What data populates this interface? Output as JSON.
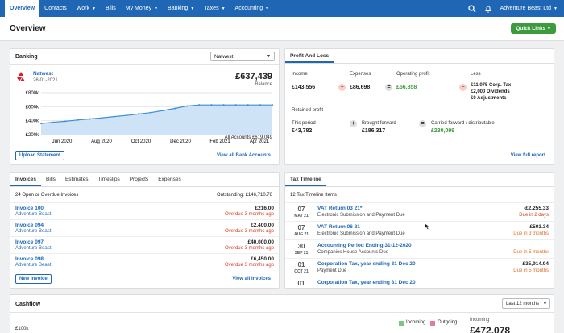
{
  "nav": {
    "items": [
      {
        "label": "Overview",
        "dropdown": false,
        "active": true
      },
      {
        "label": "Contacts",
        "dropdown": false
      },
      {
        "label": "Work",
        "dropdown": true
      },
      {
        "label": "Bills",
        "dropdown": false
      },
      {
        "label": "My Money",
        "dropdown": true
      },
      {
        "label": "Banking",
        "dropdown": true
      },
      {
        "label": "Taxes",
        "dropdown": true
      },
      {
        "label": "Accounting",
        "dropdown": true
      }
    ],
    "company": "Adventure Beast Ltd"
  },
  "page": {
    "title": "Overview",
    "quick_links": "Quick Links"
  },
  "banking": {
    "title": "Banking",
    "select": "Natwest",
    "bank_name": "Natwest",
    "date": "26-01-2021",
    "balance": "£637,439",
    "balance_label": "Balance",
    "all_accounts": "All Accounts £619,049",
    "upload": "Upload Statement",
    "view_all": "View all Bank Accounts"
  },
  "chart_data": {
    "type": "area",
    "y_ticks": [
      "£800k",
      "£600k",
      "£400k",
      "£200k"
    ],
    "x_ticks": [
      "Jun 2020",
      "Aug 2020",
      "Oct 2020",
      "Dec 2020",
      "Feb 2021",
      "Apr 2021"
    ],
    "ylim": [
      200,
      800
    ],
    "values": [
      360,
      378,
      392,
      410,
      425,
      440,
      458,
      475,
      495,
      515,
      545,
      575,
      610,
      625,
      625,
      625,
      625,
      625,
      625,
      625
    ]
  },
  "pnl": {
    "tab": "Profit And Loss",
    "income_label": "Income",
    "income": "£143,556",
    "expenses_label": "Expenses",
    "expenses": "£86,698",
    "op_label": "Operating profit",
    "op": "£56,858",
    "less_label": "Less",
    "less_lines": [
      "£11,075 Corp. Tax",
      "£2,000 Dividends",
      "£0 Adjustments"
    ],
    "retained": "Retained profit",
    "this_period_label": "This period",
    "this_period": "£43,782",
    "bf_label": "Brought forward",
    "bf": "£186,317",
    "cf_label": "Carried forward / distributable",
    "cf": "£230,099",
    "view_full": "View full report"
  },
  "invoices": {
    "tabs": [
      "Invoices",
      "Bills",
      "Estimates",
      "Timeslips",
      "Projects",
      "Expenses"
    ],
    "summary": "24 Open or Overdue Invoices",
    "outstanding": "Outstanding: £146,710.76",
    "rows": [
      {
        "name": "Invoice 100",
        "client": "Adventure Beast",
        "amount": "£216.00",
        "status": "Overdue 3 months ago"
      },
      {
        "name": "Invoice 094",
        "client": "Adventure Beast",
        "amount": "£2,400.00",
        "status": "Overdue 3 months ago"
      },
      {
        "name": "Invoice 097",
        "client": "Adventure Beast",
        "amount": "£40,000.00",
        "status": "Overdue 3 months ago"
      },
      {
        "name": "Invoice 098",
        "client": "Adventure Beast",
        "amount": "£6,450.00",
        "status": "Overdue 3 months ago"
      }
    ],
    "new": "New Invoice",
    "view_all": "View all Invoices"
  },
  "tax": {
    "tab": "Tax Timeline",
    "count": "12 Tax Timeline Items",
    "rows": [
      {
        "day": "07",
        "month": "MAY 21",
        "title": "VAT Return 03 21*",
        "sub": "Electronic Submission and Payment Due",
        "amount": "-£2,255.33",
        "due": "Due in 2 days",
        "due_class": "red"
      },
      {
        "day": "07",
        "month": "AUG 21",
        "title": "VAT Return 06 21",
        "sub": "Electronic Submission and Payment Due",
        "amount": "£503.34",
        "due": "Due in 3 months",
        "due_class": "orange"
      },
      {
        "day": "30",
        "month": "SEP 21",
        "title": "Accounting Period Ending 31-12-2020",
        "sub": "Companies House Accounts Due",
        "amount": "",
        "due": "Due in 5 months",
        "due_class": "orange"
      },
      {
        "day": "01",
        "month": "OCT 21",
        "title": "Corporation Tax, year ending 31 Dec 20",
        "sub": "Payment Due",
        "amount": "£35,914.94",
        "due": "Due in 5 months",
        "due_class": "orange"
      },
      {
        "day": "01",
        "month": "OCT 21",
        "title": "Corporation Tax, year ending 31 Dec 20",
        "sub": "",
        "amount": "",
        "due": "",
        "due_class": "orange"
      }
    ]
  },
  "cashflow": {
    "title": "Cashflow",
    "period": "Last 12 months",
    "incoming": "Incoming",
    "outgoing": "Outgoing",
    "y_top": "£100k",
    "incoming_label": "Incoming",
    "incoming_total": "£472,078"
  }
}
